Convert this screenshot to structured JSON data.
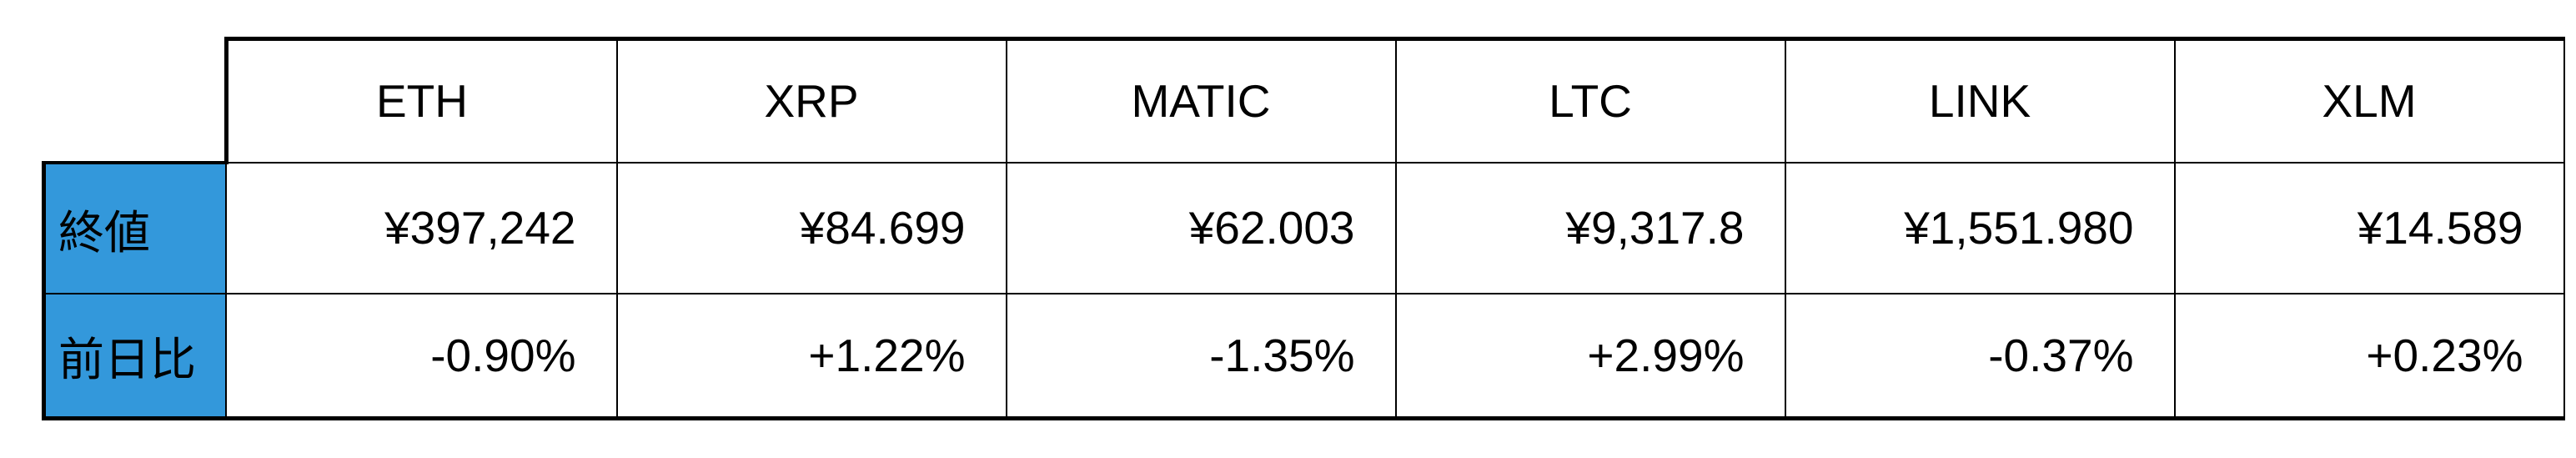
{
  "table": {
    "columns": [
      "ETH",
      "XRP",
      "MATIC",
      "LTC",
      "LINK",
      "XLM"
    ],
    "rows": [
      {
        "label": "終値",
        "values": [
          "¥397,242",
          "¥84.699",
          "¥62.003",
          "¥9,317.8",
          "¥1,551.980",
          "¥14.589"
        ]
      },
      {
        "label": "前日比",
        "values": [
          "-0.90%",
          "+1.22%",
          "-1.35%",
          "+2.99%",
          "-0.37%",
          "+0.23%"
        ]
      }
    ],
    "colors": {
      "row_header_bg": "#3398db",
      "border": "#000000",
      "text": "#000000",
      "cell_bg": "#ffffff"
    }
  },
  "chart_data": {
    "type": "table",
    "title": "",
    "columns": [
      "",
      "ETH",
      "XRP",
      "MATIC",
      "LTC",
      "LINK",
      "XLM"
    ],
    "rows": [
      [
        "終値",
        "¥397,242",
        "¥84.699",
        "¥62.003",
        "¥9,317.8",
        "¥1,551.980",
        "¥14.589"
      ],
      [
        "前日比",
        "-0.90%",
        "+1.22%",
        "-1.35%",
        "+2.99%",
        "-0.37%",
        "+0.23%"
      ]
    ]
  }
}
